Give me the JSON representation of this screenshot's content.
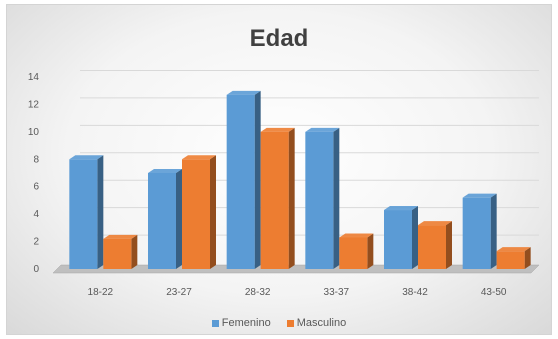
{
  "chart_data": {
    "type": "bar",
    "title": "Edad",
    "categories": [
      "18-22",
      "23-27",
      "28-32",
      "33-37",
      "38-42",
      "43-50"
    ],
    "series": [
      {
        "name": "Femenino",
        "values": [
          8,
          7,
          12.7,
          10,
          4.3,
          5.2
        ],
        "color": "#5b9bd5"
      },
      {
        "name": "Masculino",
        "values": [
          2.2,
          8,
          10,
          2.3,
          3.2,
          1.3
        ],
        "color": "#ed7d31"
      }
    ],
    "ylim": [
      0,
      14
    ],
    "yticks": [
      "0",
      "2",
      "4",
      "6",
      "8",
      "10",
      "12",
      "14"
    ],
    "grid": true,
    "legend_position": "bottom",
    "style": "3d-column"
  }
}
